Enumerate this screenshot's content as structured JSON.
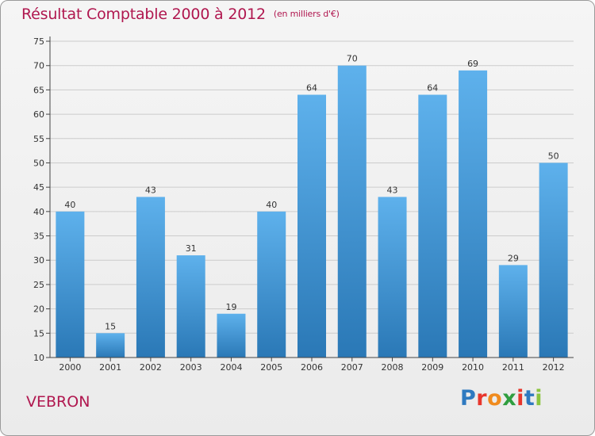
{
  "title": "Résultat Comptable 2000 à 2012",
  "subtitle": "(en milliers d'€)",
  "commune": "VEBRON",
  "brand": {
    "letters": [
      "P",
      "r",
      "o",
      "x",
      "i",
      "t",
      "i"
    ],
    "colors": [
      "#2f7ac0",
      "#e8362c",
      "#f08b1e",
      "#2f9e3f",
      "#e8362c",
      "#2f7ac0",
      "#8bc53f"
    ]
  },
  "colors": {
    "bar_light": "#5eb1ec",
    "bar_dark": "#2a78b6",
    "grid": "#cccccc",
    "title": "#b0174f"
  },
  "chart_data": {
    "type": "bar",
    "title": "Résultat Comptable 2000 à 2012",
    "ylabel": "en milliers d'€",
    "xlabel": "",
    "categories": [
      "2000",
      "2001",
      "2002",
      "2003",
      "2004",
      "2005",
      "2006",
      "2007",
      "2008",
      "2009",
      "2010",
      "2011",
      "2012"
    ],
    "values": [
      40,
      15,
      43,
      31,
      19,
      40,
      64,
      70,
      43,
      64,
      69,
      29,
      50
    ],
    "ylim": [
      10,
      75
    ],
    "yticks": [
      10,
      15,
      20,
      25,
      30,
      35,
      40,
      45,
      50,
      55,
      60,
      65,
      70,
      75
    ],
    "grid": true
  }
}
